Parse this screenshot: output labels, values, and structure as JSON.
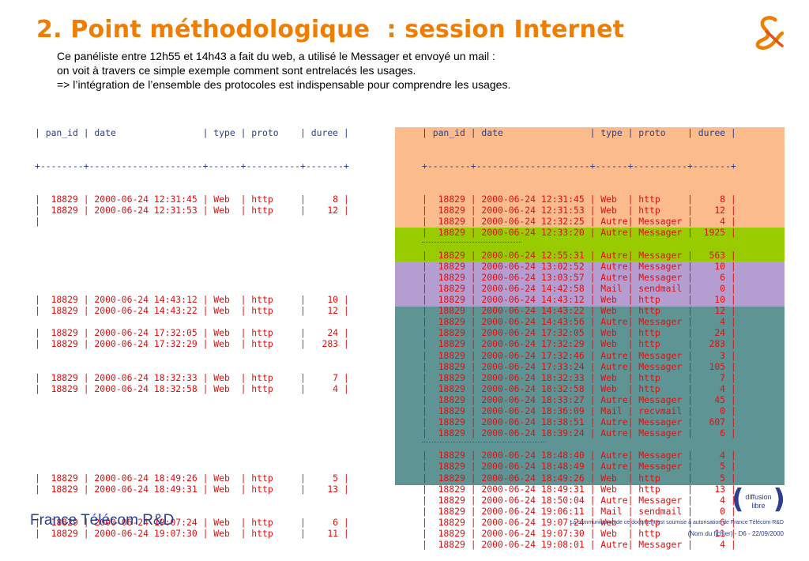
{
  "title": "2. Point méthodologique  : session Internet",
  "intro": [
    "Ce panéliste entre 12h55 et 14h43 a fait du web, a utilisé le Messager et envoyé un mail :",
    "on voit à travers ce simple exemple comment sont entrelacés les usages.",
    "=> l’intégration de l’ensemble des protocoles est indispensable pour comprendre les usages."
  ],
  "left_table": {
    "header": "| pan_id | date                | type | proto    | duree |",
    "separator": "+--------+---------------------+------+----------+-------+",
    "rows": [
      "|  18829 | 2000-06-24 12:31:45 | Web  | http     |     8 |",
      "|  18829 | 2000-06-24 12:31:53 | Web  | http     |    12 |",
      "|",
      "",
      "",
      "",
      "",
      "",
      "",
      "|  18829 | 2000-06-24 14:43:12 | Web  | http     |    10 |",
      "|  18829 | 2000-06-24 14:43:22 | Web  | http     |    12 |",
      "",
      "|  18829 | 2000-06-24 17:32:05 | Web  | http     |    24 |",
      "|  18829 | 2000-06-24 17:32:29 | Web  | http     |   283 |",
      "",
      "",
      "|  18829 | 2000-06-24 18:32:33 | Web  | http     |     7 |",
      "|  18829 | 2000-06-24 18:32:58 | Web  | http     |     4 |",
      "",
      "",
      "",
      "",
      "",
      "",
      "",
      "|  18829 | 2000-06-24 18:49:26 | Web  | http     |     5 |",
      "|  18829 | 2000-06-24 18:49:31 | Web  | http     |    13 |",
      "",
      "",
      "|  18829 | 2000-06-24 19:07:24 | Web  | http     |     6 |",
      "|  18829 | 2000-06-24 19:07:30 | Web  | http     |    11 |"
    ]
  },
  "right_table": {
    "header": "| pan_id | date                | type | proto    | duree |",
    "separator": "+--------+---------------------+------+----------+-------+",
    "rows": [
      "|  18829 | 2000-06-24 12:31:45 | Web  | http     |     8 |",
      "|  18829 | 2000-06-24 12:31:53 | Web  | http     |    12 |",
      "|  18829 | 2000-06-24 12:32:25 | Autre| Messager |     4 |",
      "|  18829 | 2000-06-24 12:33:20 | Autre| Messager |  1925 |",
      "",
      "|  18829 | 2000-06-24 12:55:31 | Autre| Messager |   563 |",
      "|  18829 | 2000-06-24 13:02:52 | Autre| Messager |    10 |",
      "|  18829 | 2000-06-24 13:03:57 | Autre| Messager |     6 |",
      "|  18829 | 2000-06-24 14:42:58 | Mail | sendmail |     0 |",
      "|  18829 | 2000-06-24 14:43:12 | Web  | http     |    10 |",
      "|  18829 | 2000-06-24 14:43:22 | Web  | http     |    12 |",
      "|  18829 | 2000-06-24 14:43:56 | Autre| Messager |     4 |",
      "|  18829 | 2000-06-24 17:32:05 | Web  | http     |    24 |",
      "|  18829 | 2000-06-24 17:32:29 | Web  | http     |   283 |",
      "|  18829 | 2000-06-24 17:32:46 | Autre| Messager |     3 |",
      "|  18829 | 2000-06-24 17:33:24 | Autre| Messager |   105 |",
      "|  18829 | 2000-06-24 18:32:33 | Web  | http     |     7 |",
      "|  18829 | 2000-06-24 18:32:58 | Web  | http     |     4 |",
      "|  18829 | 2000-06-24 18:33:27 | Autre| Messager |    45 |",
      "|  18829 | 2000-06-24 18:36:09 | Mail | recvmail |     0 |",
      "|  18829 | 2000-06-24 18:38:51 | Autre| Messager |   607 |",
      "|  18829 | 2000-06-24 18:39:24 | Autre| Messager |     6 |",
      "",
      "|  18829 | 2000-06-24 18:48:40 | Autre| Messager |     4 |",
      "|  18829 | 2000-06-24 18:48:49 | Autre| Messager |     5 |",
      "|  18829 | 2000-06-24 18:49:26 | Web  | http     |     5 |",
      "|  18829 | 2000-06-24 18:49:31 | Web  | http     |    13 |",
      "|  18829 | 2000-06-24 18:50:04 | Autre| Messager |     4 |",
      "|  18829 | 2000-06-24 19:06:11 | Mail | sendmail |     0 |",
      "|  18829 | 2000-06-24 19:07:24 | Web  | http     |     6 |",
      "|  18829 | 2000-06-24 19:07:30 | Web  | http     |    11 |",
      "|  18829 | 2000-06-24 19:08:01 | Autre| Messager |     4 |"
    ]
  },
  "band_colors": {
    "orange": "#fbbb8a",
    "green": "#99cc00",
    "purple": "#b49dd0",
    "teal": "#5f9495"
  },
  "footer": {
    "company": "France Télécom R&D",
    "notice": "La communication de ce document est soumise à autorisation de France Télécom R&D",
    "page": "(Nom du fichier)  - D6 - 22/09/2000",
    "badge_line1": "diffusion",
    "badge_line2": "libre"
  },
  "logo_icon": "ampersand-logo-icon"
}
